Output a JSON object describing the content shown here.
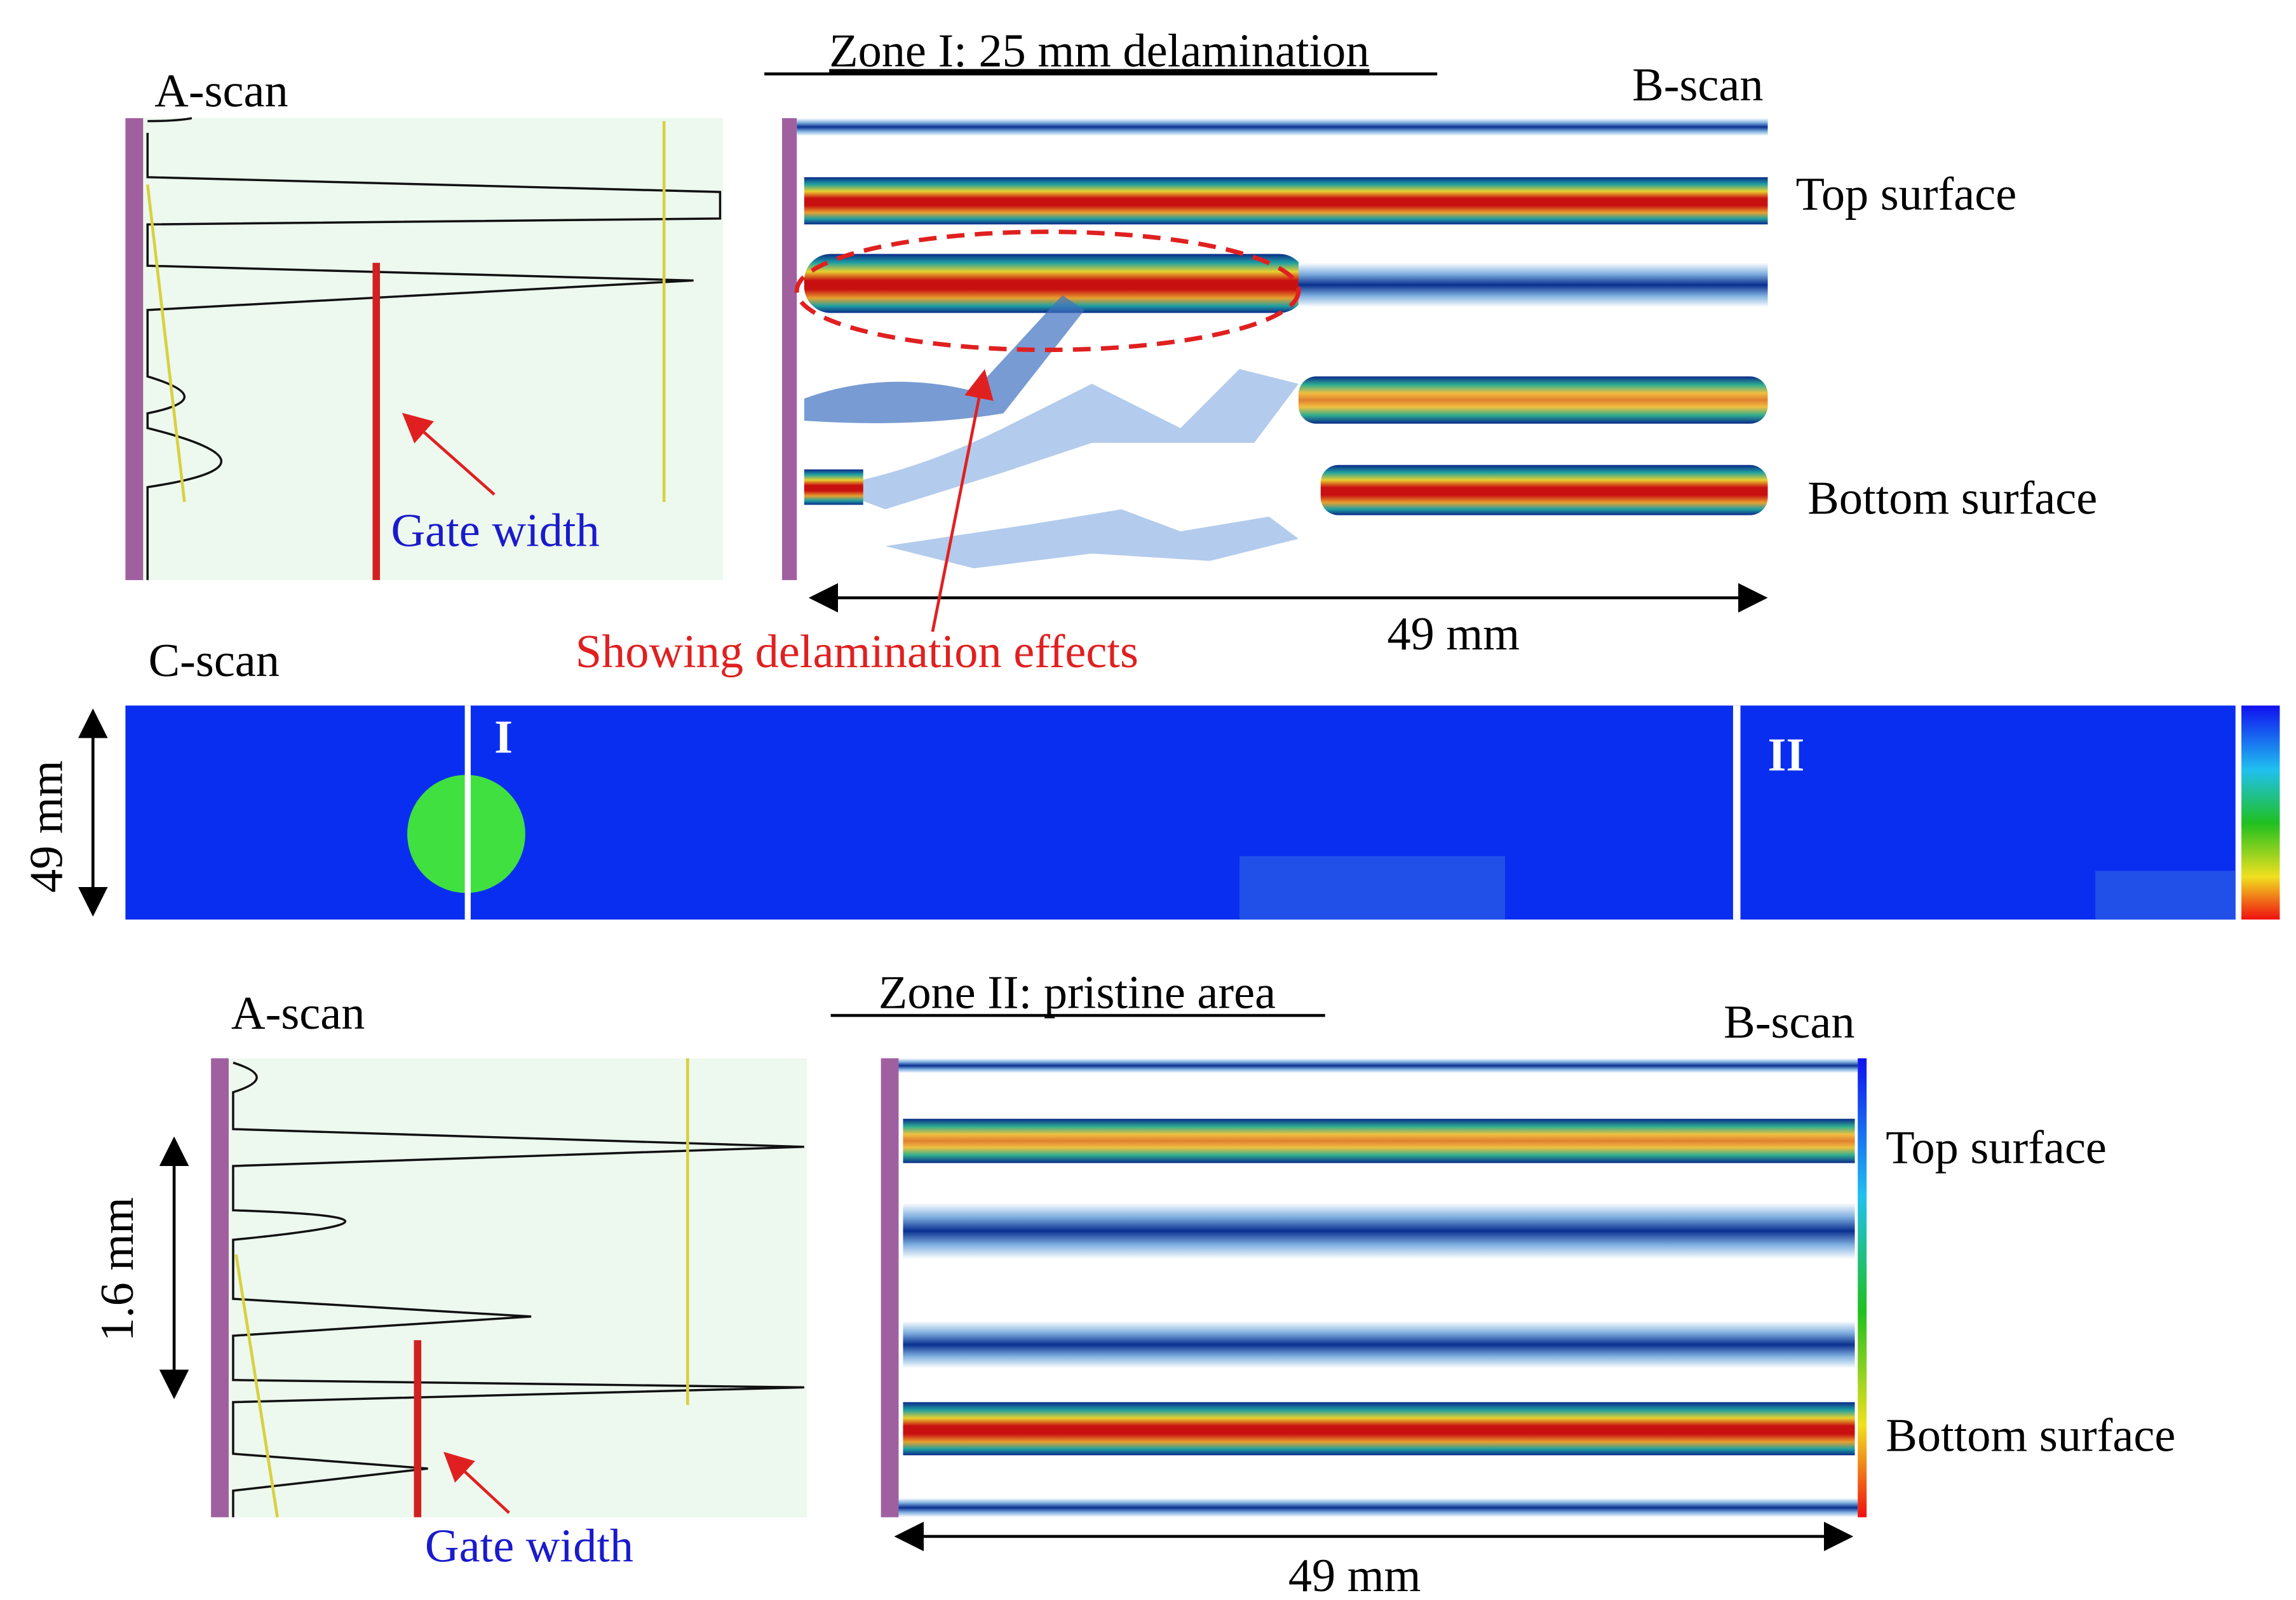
{
  "zone1": {
    "title": "Zone I: 25 mm delamination",
    "a_scan_label": "A-scan",
    "b_scan_label": "B-scan",
    "top_surface": "Top surface",
    "bottom_surface": "Bottom surface",
    "gate_width": "Gate width",
    "width_label": "49 mm",
    "annotation": "Showing delamination effects"
  },
  "c_scan": {
    "label": "C-scan",
    "zone1_marker": "I",
    "zone2_marker": "II",
    "height_label": "49 mm"
  },
  "zone2": {
    "title": "Zone II: pristine area",
    "a_scan_label": "A-scan",
    "b_scan_label": "B-scan",
    "top_surface": "Top surface",
    "bottom_surface": "Bottom surface",
    "gate_width": "Gate width",
    "depth_label": "1.6 mm",
    "width_label": "49 mm"
  }
}
